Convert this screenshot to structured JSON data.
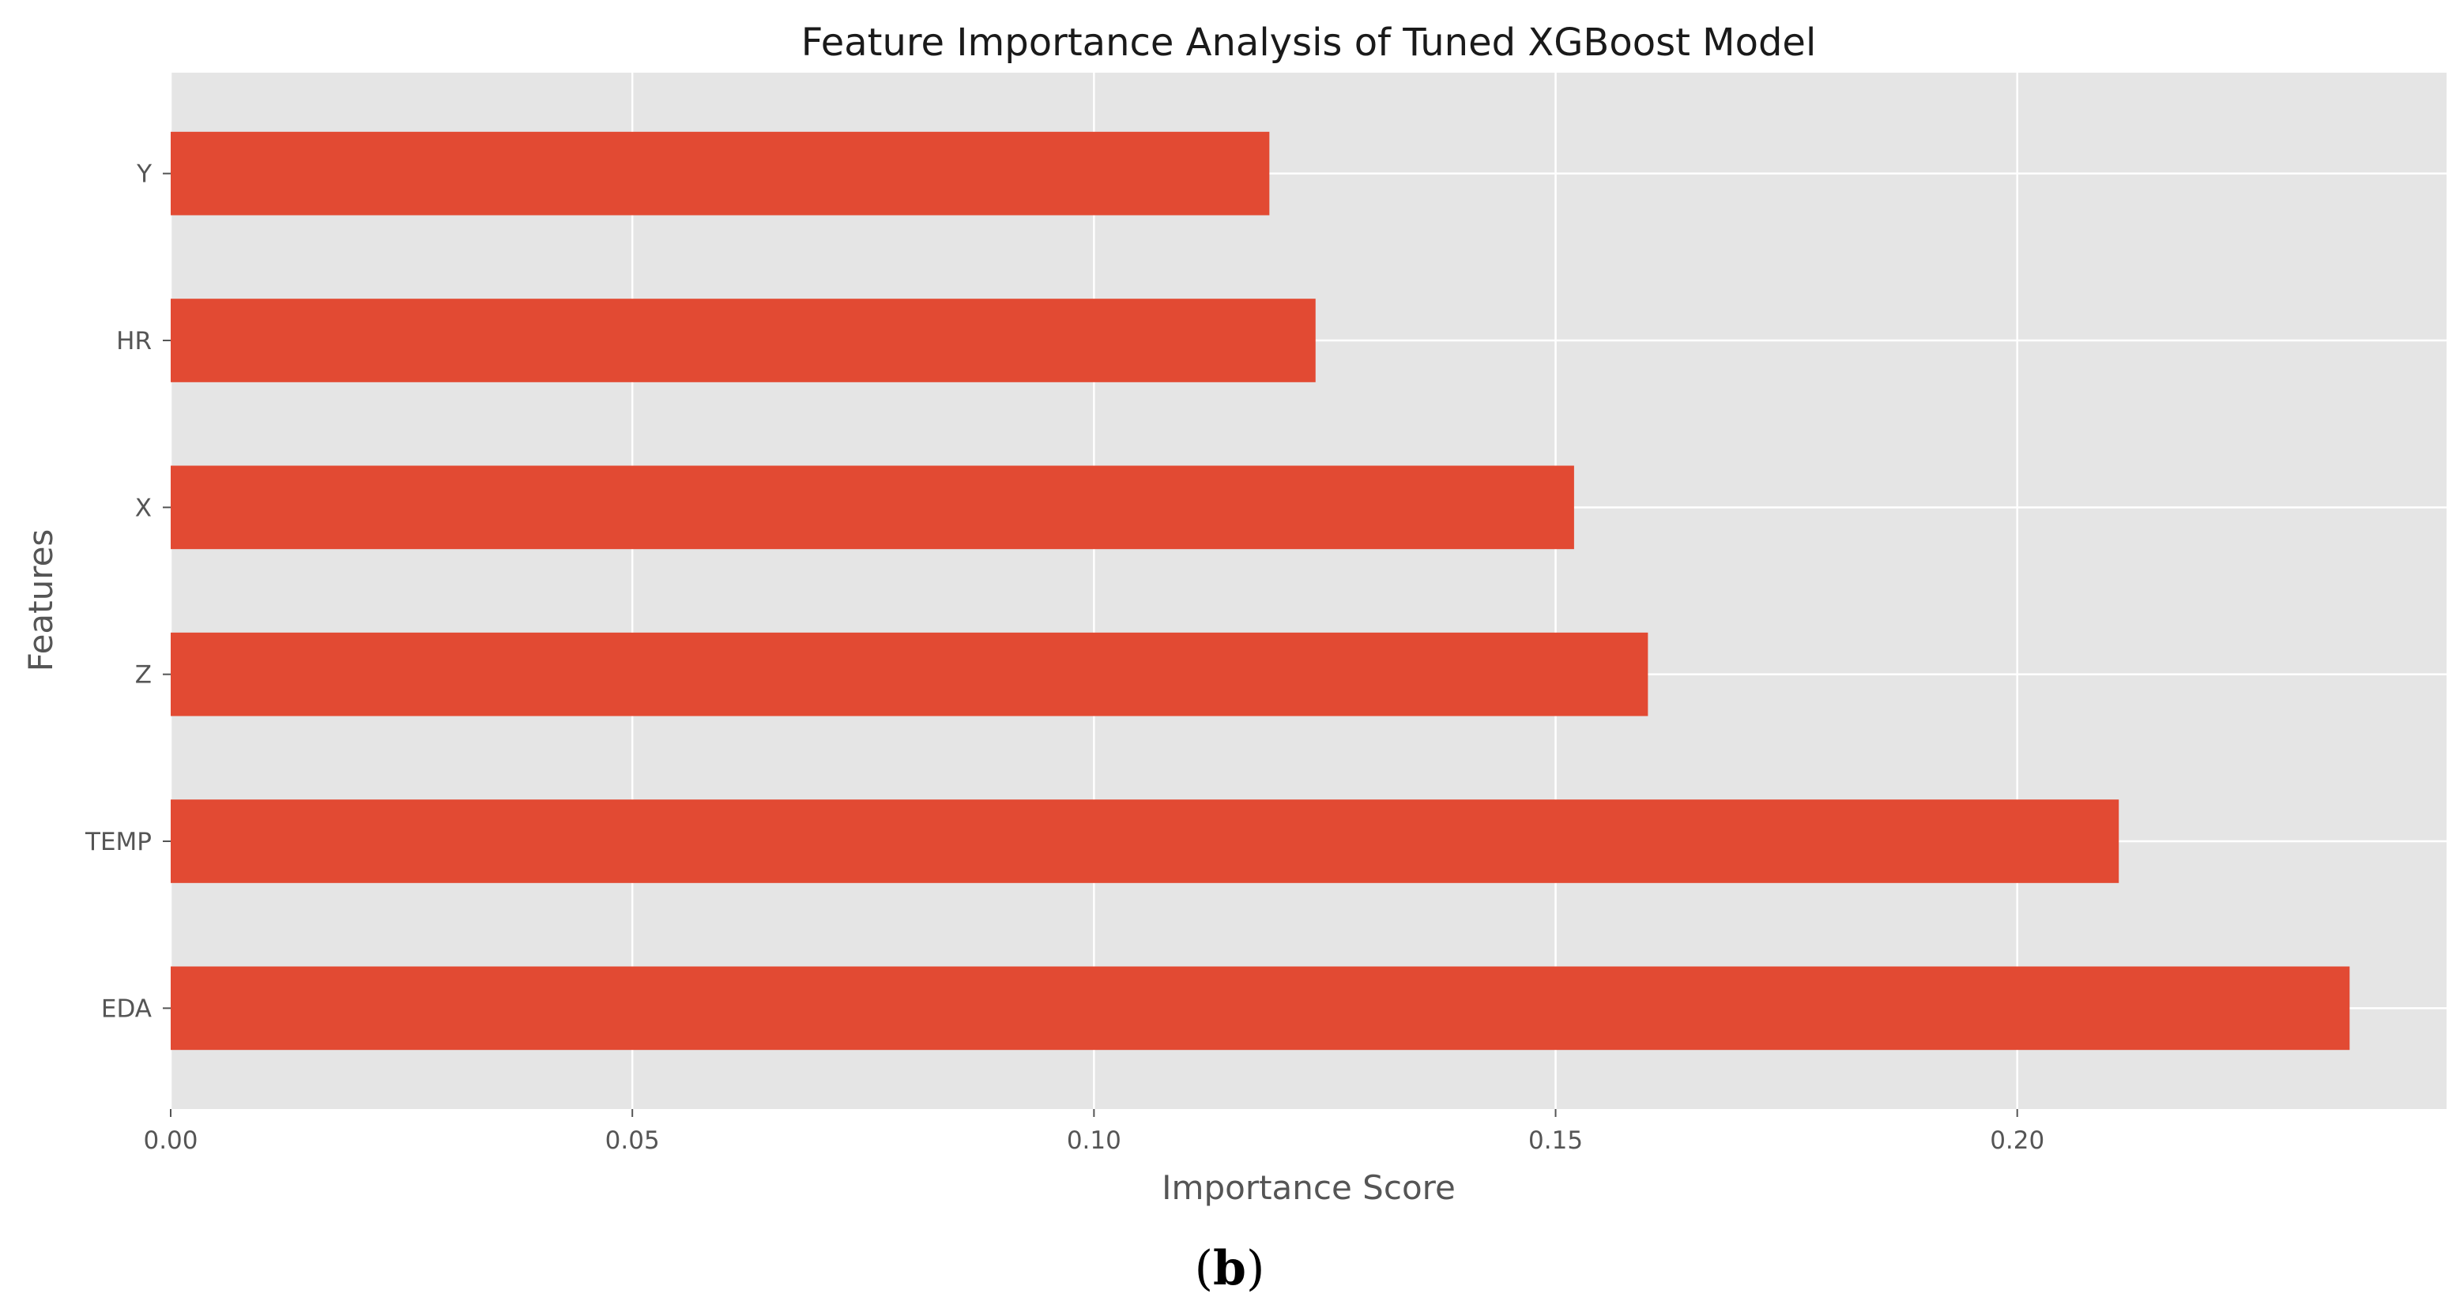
{
  "chart_data": {
    "type": "bar",
    "orientation": "horizontal",
    "title": "Feature Importance Analysis of Tuned XGBoost Model",
    "xlabel": "Importance Score",
    "ylabel": "Features",
    "categories": [
      "EDA",
      "TEMP",
      "Z",
      "X",
      "HR",
      "Y"
    ],
    "values": [
      0.236,
      0.211,
      0.16,
      0.152,
      0.124,
      0.119
    ],
    "xlim": [
      0.0,
      0.2465
    ],
    "xticks": [
      0.0,
      0.05,
      0.1,
      0.15,
      0.2
    ],
    "xtick_labels": [
      "0.00",
      "0.05",
      "0.10",
      "0.15",
      "0.20"
    ],
    "grid": true,
    "bar_color": "#E24A33",
    "background_color": "#E5E5E5",
    "grid_color": "#FFFFFF"
  },
  "caption": {
    "open": "(",
    "letter": "b",
    "close": ")"
  }
}
